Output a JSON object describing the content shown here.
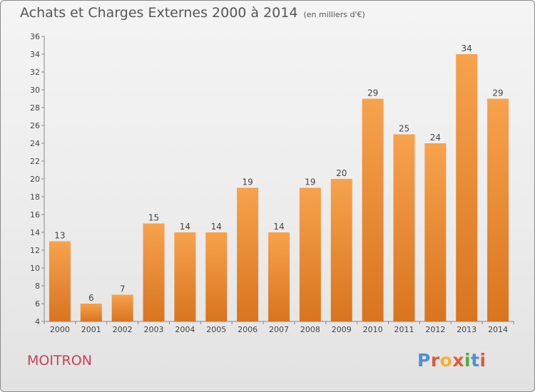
{
  "header": {
    "title": "Achats et Charges Externes 2000 à 2014",
    "subtitle": "(en milliers d'€)"
  },
  "footer": {
    "place": "MOITRON",
    "logo": [
      "P",
      "r",
      "o",
      "x",
      "i",
      "t",
      "i"
    ]
  },
  "colors": {
    "bar_top": "#f7a24d",
    "bar_bottom": "#d9741f",
    "place": "#c4425a",
    "logo": [
      "#4f8fd6",
      "#e05a3d",
      "#f2b233",
      "#e05a3d",
      "#5aab3a",
      "#4f8fd6",
      "#e05a3d"
    ]
  },
  "chart_data": {
    "type": "bar",
    "title": "Achats et Charges Externes 2000 à 2014",
    "subtitle": "(en milliers d'€)",
    "categories": [
      "2000",
      "2001",
      "2002",
      "2003",
      "2004",
      "2005",
      "2006",
      "2007",
      "2008",
      "2009",
      "2010",
      "2011",
      "2012",
      "2013",
      "2014"
    ],
    "values": [
      13,
      6,
      7,
      15,
      14,
      14,
      19,
      14,
      19,
      20,
      29,
      25,
      24,
      34,
      29
    ],
    "ylim": [
      4,
      36
    ],
    "yticks": [
      4,
      6,
      8,
      10,
      12,
      14,
      16,
      18,
      20,
      22,
      24,
      26,
      28,
      30,
      32,
      34,
      36
    ],
    "grid": false,
    "data_labels": true
  }
}
